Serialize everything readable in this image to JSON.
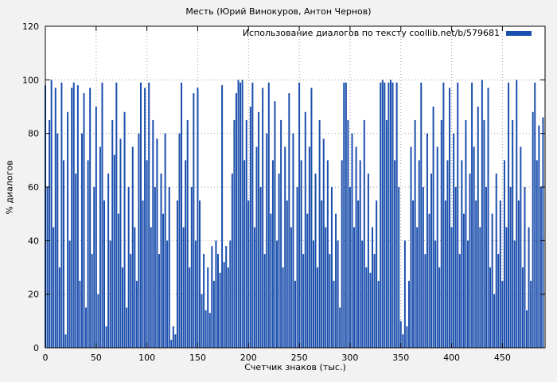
{
  "window": {
    "background": "#f2f2f2",
    "plot_background": "#ffffff"
  },
  "chart_data": {
    "type": "bar",
    "title": "Месть (Юрий Винокуров, Антон Чернов)",
    "xlabel": "Счетчик знаков (тыс.)",
    "ylabel": "% диалогов",
    "legend": {
      "label": "Использование диалогов по тексту coollib.net/b/579681",
      "position": "top-right",
      "swatch_color": "#1b4fad"
    },
    "xlim": [
      0,
      492
    ],
    "ylim": [
      0,
      120
    ],
    "xticks": [
      0,
      50,
      100,
      150,
      200,
      250,
      300,
      350,
      400,
      450
    ],
    "yticks": [
      0,
      20,
      40,
      60,
      80,
      100,
      120
    ],
    "grid": true,
    "bar_color": "#1b4fad",
    "x_start": 0,
    "x_step": 2,
    "values": [
      98,
      60,
      85,
      100,
      45,
      97,
      80,
      30,
      99,
      70,
      5,
      88,
      40,
      97,
      99,
      65,
      98,
      25,
      80,
      95,
      15,
      70,
      97,
      35,
      60,
      90,
      20,
      75,
      99,
      55,
      8,
      65,
      40,
      85,
      72,
      99,
      50,
      78,
      30,
      88,
      15,
      60,
      35,
      75,
      45,
      25,
      80,
      99,
      55,
      97,
      70,
      99,
      45,
      85,
      60,
      78,
      35,
      65,
      50,
      80,
      40,
      60,
      3,
      8,
      5,
      55,
      80,
      99,
      45,
      70,
      85,
      30,
      60,
      95,
      40,
      97,
      55,
      20,
      35,
      14,
      30,
      13,
      38,
      25,
      40,
      35,
      28,
      98,
      32,
      38,
      30,
      40,
      65,
      85,
      95,
      100,
      99,
      100,
      70,
      85,
      55,
      90,
      99,
      45,
      75,
      88,
      60,
      97,
      35,
      80,
      99,
      50,
      70,
      92,
      40,
      65,
      85,
      30,
      75,
      55,
      95,
      45,
      80,
      25,
      60,
      99,
      70,
      35,
      88,
      50,
      75,
      97,
      40,
      65,
      30,
      85,
      55,
      78,
      45,
      70,
      35,
      60,
      25,
      50,
      40,
      15,
      70,
      99,
      99,
      85,
      60,
      80,
      45,
      75,
      55,
      70,
      40,
      85,
      30,
      65,
      28,
      45,
      35,
      55,
      25,
      99,
      100,
      99,
      85,
      99,
      100,
      99,
      70,
      99,
      60,
      10,
      5,
      40,
      8,
      25,
      75,
      55,
      85,
      45,
      70,
      99,
      60,
      35,
      80,
      50,
      65,
      90,
      40,
      75,
      30,
      85,
      99,
      55,
      70,
      97,
      45,
      80,
      60,
      99,
      35,
      70,
      50,
      85,
      40,
      65,
      99,
      75,
      55,
      90,
      45,
      100,
      85,
      60,
      97,
      30,
      50,
      20,
      65,
      35,
      55,
      25,
      70,
      45,
      99,
      60,
      85,
      40,
      100,
      55,
      75,
      30,
      60,
      14,
      45,
      25,
      88,
      99,
      70,
      83,
      60,
      86
    ]
  }
}
